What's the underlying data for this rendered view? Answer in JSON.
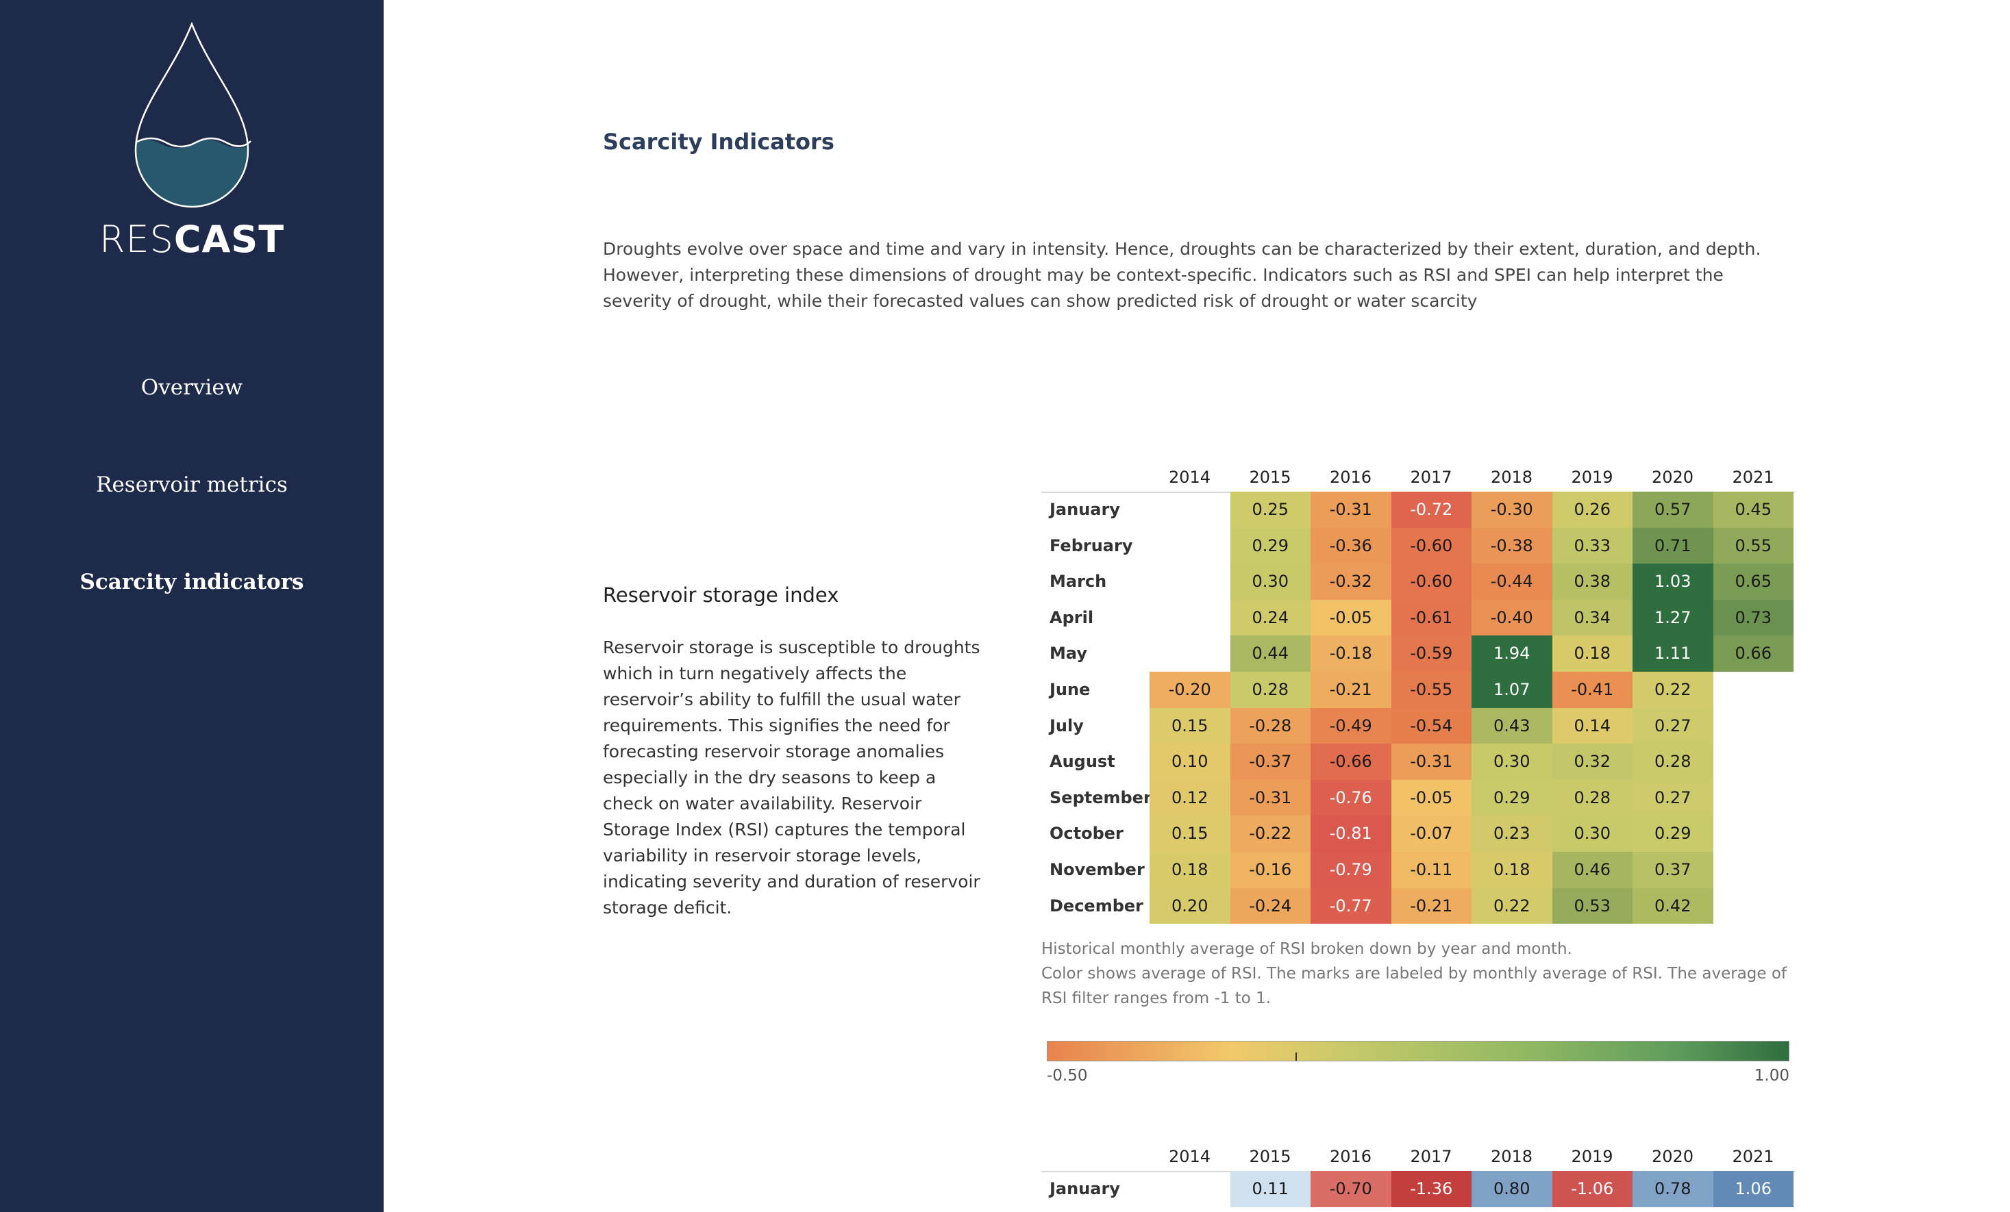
{
  "sidebar": {
    "brand_thin": "RES",
    "brand_bold": "CAST",
    "nav": [
      {
        "label": "Overview"
      },
      {
        "label": "Reservoir metrics"
      },
      {
        "label": "Scarcity indicators"
      }
    ]
  },
  "main": {
    "title": "Scarcity Indicators",
    "intro": "Droughts evolve over space and time and vary in intensity. Hence, droughts can be characterized by their extent, duration, and depth. However, interpreting these dimensions of drought may be context-specific. Indicators such as RSI and SPEI can help interpret the severity of drought, while their forecasted values can show predicted risk of drought or water scarcity",
    "rsi_title": "Reservoir storage index",
    "rsi_desc": "Reservoir storage is susceptible to droughts which in turn negatively affects the reservoir’s ability to fulfill the usual water requirements. This signifies the need for forecasting reservoir storage anomalies especially in the dry seasons to keep a check on water availability. Reservoir Storage Index (RSI) captures the temporal variability in reservoir storage levels, indicating severity and duration of reservoir storage deficit.",
    "caption_line1": "Historical monthly average of RSI broken down by year and month.",
    "caption_line2": "Color shows average of RSI.  The marks are labeled by monthly average of RSI.  The average of RSI filter ranges from -1 to 1.",
    "legend_min": "-0.50",
    "legend_max": "1.00"
  },
  "chart_data": [
    {
      "type": "heatmap",
      "title": "",
      "x": [
        "2014",
        "2015",
        "2016",
        "2017",
        "2018",
        "2019",
        "2020",
        "2021"
      ],
      "y": [
        "January",
        "February",
        "March",
        "April",
        "May",
        "June",
        "July",
        "August",
        "September",
        "October",
        "November",
        "December"
      ],
      "values": [
        [
          null,
          0.25,
          -0.31,
          -0.72,
          -0.3,
          0.26,
          0.57,
          0.45
        ],
        [
          null,
          0.29,
          -0.36,
          -0.6,
          -0.38,
          0.33,
          0.71,
          0.55
        ],
        [
          null,
          0.3,
          -0.32,
          -0.6,
          -0.44,
          0.38,
          1.03,
          0.65
        ],
        [
          null,
          0.24,
          -0.05,
          -0.61,
          -0.4,
          0.34,
          1.27,
          0.73
        ],
        [
          null,
          0.44,
          -0.18,
          -0.59,
          1.94,
          0.18,
          1.11,
          0.66
        ],
        [
          -0.2,
          0.28,
          -0.21,
          -0.55,
          1.07,
          -0.41,
          0.22,
          null
        ],
        [
          0.15,
          -0.28,
          -0.49,
          -0.54,
          0.43,
          0.14,
          0.27,
          null
        ],
        [
          0.1,
          -0.37,
          -0.66,
          -0.31,
          0.3,
          0.32,
          0.28,
          null
        ],
        [
          0.12,
          -0.31,
          -0.76,
          -0.05,
          0.29,
          0.28,
          0.27,
          null
        ],
        [
          0.15,
          -0.22,
          -0.81,
          -0.07,
          0.23,
          0.3,
          0.29,
          null
        ],
        [
          0.18,
          -0.16,
          -0.79,
          -0.11,
          0.18,
          0.46,
          0.37,
          null
        ],
        [
          0.2,
          -0.24,
          -0.77,
          -0.21,
          0.22,
          0.53,
          0.42,
          null
        ]
      ],
      "color_range": [
        -0.5,
        1.0
      ],
      "colors": {
        "low": "#e8834e",
        "mid_low": "#f2c96b",
        "mid": "#c8ca6a",
        "high": "#2f6e3e"
      }
    },
    {
      "type": "heatmap",
      "title": "",
      "x": [
        "2014",
        "2015",
        "2016",
        "2017",
        "2018",
        "2019",
        "2020",
        "2021"
      ],
      "y": [
        "January"
      ],
      "values": [
        [
          null,
          0.11,
          -0.7,
          -1.36,
          0.8,
          -1.06,
          0.78,
          1.06
        ]
      ],
      "colors": {
        "neg_light": "#f1a090",
        "neg_dark": "#c23c3c",
        "pos_light": "#dceaf5",
        "pos_dark": "#5d86b5"
      }
    }
  ]
}
